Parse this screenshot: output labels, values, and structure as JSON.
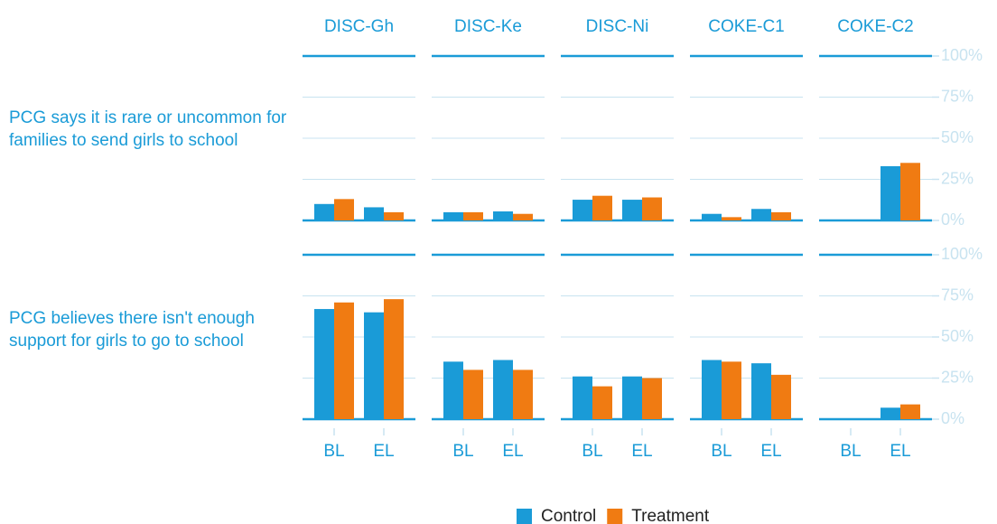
{
  "chart_data": {
    "type": "bar",
    "facet_columns": [
      "DISC-Gh",
      "DISC-Ke",
      "DISC-Ni",
      "COKE-C1",
      "COKE-C2"
    ],
    "facet_rows": [
      "PCG says it is rare or uncommon for families to send girls to school",
      "PCG believes there isn't enough support for girls to go to school"
    ],
    "categories": [
      "BL",
      "EL"
    ],
    "series": [
      {
        "name": "Control",
        "color": "#1a9bd7",
        "values": [
          [
            [
              10,
              8
            ],
            [
              5,
              5.5
            ],
            [
              12.6,
              12.6
            ],
            [
              4,
              7
            ],
            [
              0,
              33
            ]
          ],
          [
            [
              67,
              65
            ],
            [
              35,
              36
            ],
            [
              26,
              26
            ],
            [
              36,
              34
            ],
            [
              0,
              7
            ]
          ]
        ]
      },
      {
        "name": "Treatment",
        "color": "#f07b12",
        "values": [
          [
            [
              13,
              5
            ],
            [
              5,
              4
            ],
            [
              15,
              14
            ],
            [
              2,
              5
            ],
            [
              0,
              35
            ]
          ],
          [
            [
              71,
              73
            ],
            [
              30,
              30
            ],
            [
              20,
              25
            ],
            [
              35,
              27
            ],
            [
              0,
              9
            ]
          ]
        ]
      }
    ],
    "ylim": [
      0,
      100
    ],
    "yticks": [
      {
        "value": 0,
        "label": "0%"
      },
      {
        "value": 25,
        "label": "25%"
      },
      {
        "value": 50,
        "label": "50%"
      },
      {
        "value": 75,
        "label": "75%"
      },
      {
        "value": 100,
        "label": "100%"
      }
    ],
    "grid": true,
    "legend": "bottom"
  }
}
